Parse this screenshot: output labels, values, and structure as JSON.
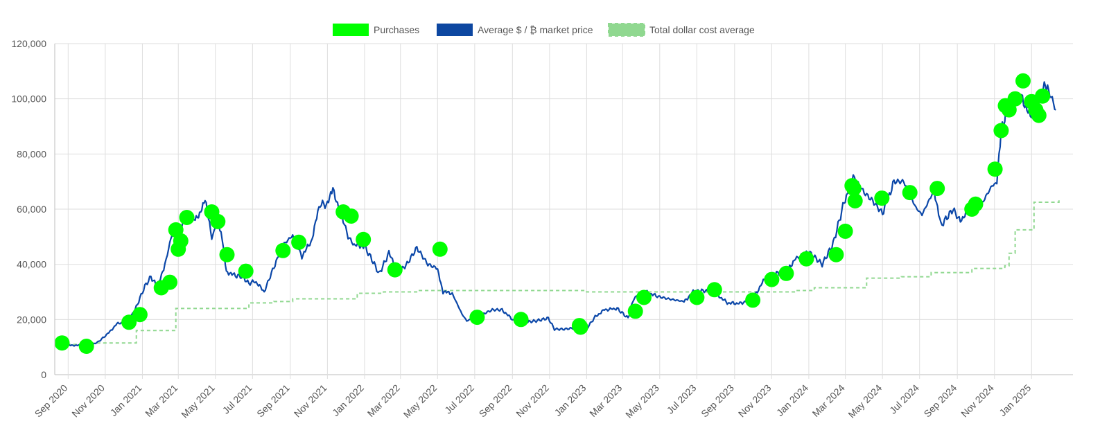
{
  "chart_data": {
    "type": "line",
    "title": "",
    "xlabel": "",
    "ylabel": "",
    "ylim": [
      0,
      120000
    ],
    "y_ticks": [
      0,
      20000,
      40000,
      60000,
      80000,
      100000,
      120000
    ],
    "y_tick_labels": [
      "0",
      "20,000",
      "40,000",
      "60,000",
      "80,000",
      "100,000",
      "120,000"
    ],
    "xlim": [
      "2020-08-10",
      "2025-03-10"
    ],
    "x_ticks": [
      "2020-09-01",
      "2020-11-01",
      "2021-01-01",
      "2021-03-01",
      "2021-05-01",
      "2021-07-01",
      "2021-09-01",
      "2021-11-01",
      "2022-01-01",
      "2022-03-01",
      "2022-05-01",
      "2022-07-01",
      "2022-09-01",
      "2022-11-01",
      "2023-01-01",
      "2023-03-01",
      "2023-05-01",
      "2023-07-01",
      "2023-09-01",
      "2023-11-01",
      "2024-01-01",
      "2024-03-01",
      "2024-05-01",
      "2024-07-01",
      "2024-09-01",
      "2024-11-01",
      "2025-01-01"
    ],
    "x_tick_labels": [
      "Sep 2020",
      "Nov 2020",
      "Jan 2021",
      "Mar 2021",
      "May 2021",
      "Jul 2021",
      "Sep 2021",
      "Nov 2021",
      "Jan 2022",
      "Mar 2022",
      "May 2022",
      "Jul 2022",
      "Sep 2022",
      "Nov 2022",
      "Jan 2023",
      "Mar 2023",
      "May 2023",
      "Jul 2023",
      "Sep 2023",
      "Nov 2023",
      "Jan 2024",
      "Mar 2024",
      "May 2024",
      "Jul 2024",
      "Sep 2024",
      "Nov 2024",
      "Jan 2025"
    ],
    "grid": true,
    "legend_position": "top-center",
    "legend": [
      {
        "label": "Purchases",
        "color": "#00ff00",
        "style": "box"
      },
      {
        "label": "Average $ / ₿ market price",
        "color": "#0d47a1",
        "style": "box"
      },
      {
        "label": "Total dollar cost average",
        "color": "#90d890",
        "style": "dashed-box"
      }
    ],
    "series": [
      {
        "name": "Average $ / ₿ market price",
        "type": "line",
        "color": "#0b47a8",
        "x": [
          "2020-08-20",
          "2020-09-05",
          "2020-09-20",
          "2020-10-05",
          "2020-10-20",
          "2020-11-05",
          "2020-11-20",
          "2020-12-05",
          "2020-12-20",
          "2021-01-05",
          "2021-01-15",
          "2021-01-25",
          "2021-02-05",
          "2021-02-15",
          "2021-02-22",
          "2021-03-01",
          "2021-03-13",
          "2021-03-25",
          "2021-04-05",
          "2021-04-14",
          "2021-04-25",
          "2021-05-05",
          "2021-05-12",
          "2021-05-19",
          "2021-06-01",
          "2021-06-15",
          "2021-06-25",
          "2021-07-05",
          "2021-07-20",
          "2021-08-05",
          "2021-08-20",
          "2021-09-05",
          "2021-09-20",
          "2021-10-05",
          "2021-10-20",
          "2021-11-01",
          "2021-11-10",
          "2021-11-25",
          "2021-12-05",
          "2021-12-15",
          "2022-01-01",
          "2022-01-15",
          "2022-01-25",
          "2022-02-10",
          "2022-02-25",
          "2022-03-10",
          "2022-03-28",
          "2022-04-15",
          "2022-05-01",
          "2022-05-10",
          "2022-05-25",
          "2022-06-10",
          "2022-06-18",
          "2022-07-10",
          "2022-07-30",
          "2022-08-15",
          "2022-09-01",
          "2022-09-20",
          "2022-10-10",
          "2022-10-30",
          "2022-11-09",
          "2022-11-25",
          "2022-12-15",
          "2023-01-01",
          "2023-01-15",
          "2023-01-30",
          "2023-02-20",
          "2023-03-10",
          "2023-03-20",
          "2023-04-10",
          "2023-04-25",
          "2023-05-15",
          "2023-06-10",
          "2023-06-25",
          "2023-07-15",
          "2023-08-01",
          "2023-08-20",
          "2023-09-10",
          "2023-10-01",
          "2023-10-20",
          "2023-11-05",
          "2023-11-25",
          "2023-12-10",
          "2024-01-01",
          "2024-01-11",
          "2024-01-23",
          "2024-02-10",
          "2024-02-28",
          "2024-03-14",
          "2024-04-01",
          "2024-04-15",
          "2024-05-01",
          "2024-05-20",
          "2024-06-05",
          "2024-06-25",
          "2024-07-05",
          "2024-07-25",
          "2024-08-05",
          "2024-08-25",
          "2024-09-06",
          "2024-09-25",
          "2024-10-10",
          "2024-10-28",
          "2024-11-05",
          "2024-11-12",
          "2024-11-22",
          "2024-12-05",
          "2024-12-17",
          "2024-12-30",
          "2025-01-10",
          "2025-01-20",
          "2025-01-31",
          "2025-02-10"
        ],
        "y": [
          11800,
          10600,
          10700,
          10600,
          11800,
          14800,
          18400,
          19100,
          23500,
          32000,
          35500,
          32000,
          38000,
          47500,
          54000,
          49000,
          59000,
          56000,
          58500,
          63500,
          49500,
          56000,
          50000,
          37500,
          36000,
          35500,
          33000,
          34000,
          30000,
          39000,
          47000,
          50500,
          43000,
          48000,
          62000,
          61500,
          67000,
          57500,
          50000,
          47000,
          46500,
          41000,
          36500,
          44000,
          38500,
          39500,
          46000,
          40000,
          38500,
          30000,
          29500,
          22000,
          19500,
          21500,
          23500,
          23500,
          20000,
          19000,
          19500,
          20500,
          16500,
          16500,
          17000,
          16700,
          21000,
          23500,
          24000,
          20500,
          28000,
          30000,
          28500,
          27500,
          26500,
          30000,
          30500,
          29500,
          26000,
          25800,
          27500,
          34500,
          36500,
          37500,
          42000,
          44500,
          42500,
          40000,
          47500,
          62500,
          72000,
          66000,
          63000,
          58500,
          70000,
          70000,
          60500,
          58000,
          67000,
          54000,
          60000,
          55500,
          62500,
          61500,
          68500,
          69500,
          88000,
          97000,
          101000,
          100500,
          93000,
          97000,
          104500,
          102000,
          96000
        ]
      },
      {
        "name": "Total dollar cost average",
        "type": "step",
        "color": "#90d890",
        "x": [
          "2020-08-20",
          "2020-10-01",
          "2020-11-05",
          "2020-12-22",
          "2021-02-25",
          "2021-06-25",
          "2021-08-05",
          "2021-09-05",
          "2021-12-10",
          "2021-12-20",
          "2022-02-01",
          "2022-04-01",
          "2022-07-01",
          "2022-10-01",
          "2023-01-01",
          "2023-04-01",
          "2023-07-01",
          "2023-10-01",
          "2023-11-05",
          "2023-12-10",
          "2024-01-10",
          "2024-03-20",
          "2024-04-05",
          "2024-06-01",
          "2024-07-20",
          "2024-08-25",
          "2024-09-25",
          "2024-11-18",
          "2024-11-25",
          "2024-12-05",
          "2025-01-05",
          "2025-02-15"
        ],
        "y": [
          11000,
          11500,
          11500,
          16000,
          24000,
          26000,
          26500,
          27500,
          27500,
          29500,
          30000,
          30500,
          30500,
          30500,
          30000,
          30000,
          30000,
          30000,
          30000,
          30500,
          31500,
          31500,
          35000,
          35500,
          37000,
          37000,
          38500,
          39500,
          44000,
          52500,
          62500,
          63500
        ]
      },
      {
        "name": "Purchases",
        "type": "scatter",
        "color": "#00ff00",
        "x": [
          "2020-08-22",
          "2020-10-01",
          "2020-12-10",
          "2020-12-28",
          "2021-02-01",
          "2021-02-15",
          "2021-02-25",
          "2021-03-01",
          "2021-03-05",
          "2021-03-15",
          "2021-04-25",
          "2021-05-05",
          "2021-05-20",
          "2021-06-20",
          "2021-08-20",
          "2021-09-15",
          "2021-11-27",
          "2021-12-10",
          "2021-12-30",
          "2022-02-20",
          "2022-05-05",
          "2022-07-05",
          "2022-09-15",
          "2022-12-20",
          "2022-12-22",
          "2023-03-22",
          "2023-04-05",
          "2023-07-01",
          "2023-07-30",
          "2023-10-01",
          "2023-11-01",
          "2023-11-25",
          "2023-12-28",
          "2024-02-15",
          "2024-03-01",
          "2024-03-12",
          "2024-03-15",
          "2024-03-17",
          "2024-04-30",
          "2024-06-15",
          "2024-07-30",
          "2024-09-25",
          "2024-10-01",
          "2024-11-02",
          "2024-11-12",
          "2024-11-19",
          "2024-11-25",
          "2024-12-05",
          "2024-12-18",
          "2025-01-01",
          "2025-01-08",
          "2025-01-13",
          "2025-01-19"
        ],
        "y": [
          11500,
          10300,
          19000,
          21800,
          31500,
          33500,
          52500,
          45500,
          48500,
          57000,
          59000,
          55500,
          43500,
          37500,
          45000,
          48000,
          59000,
          57500,
          49000,
          38000,
          45500,
          20800,
          20000,
          17800,
          17200,
          23000,
          28000,
          28000,
          30800,
          27000,
          34500,
          36700,
          42000,
          43500,
          52000,
          68500,
          67500,
          63000,
          64000,
          66000,
          67500,
          60000,
          61800,
          74500,
          88500,
          97500,
          96000,
          100000,
          106500,
          99000,
          96000,
          94000,
          101000
        ]
      }
    ]
  }
}
